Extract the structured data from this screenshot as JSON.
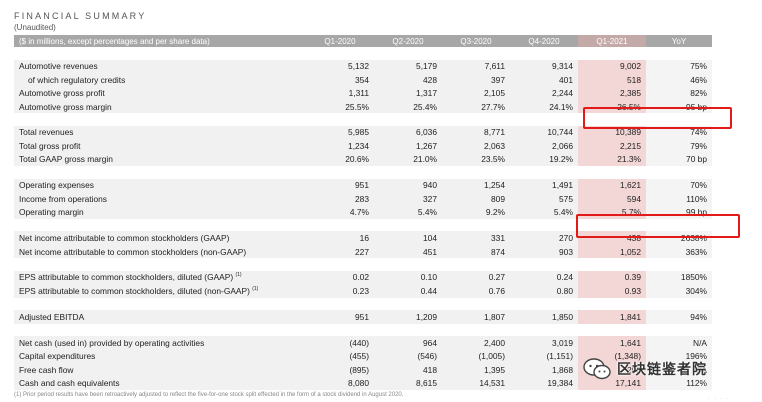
{
  "title": "FINANCIAL SUMMARY",
  "subtitle": "(Unaudited)",
  "header": [
    "($ in millions, except percentages and per share data)",
    "Q1-2020",
    "Q2-2020",
    "Q3-2020",
    "Q4-2020",
    "Q1-2021",
    "YoY"
  ],
  "groups": [
    [
      {
        "label": "Automotive revenues",
        "values": [
          "5,132",
          "5,179",
          "7,611",
          "9,314",
          "9,002",
          "75%"
        ]
      },
      {
        "label": "of which regulatory credits",
        "values": [
          "354",
          "428",
          "397",
          "401",
          "518",
          "46%"
        ],
        "sub": true
      },
      {
        "label": "Automotive gross profit",
        "values": [
          "1,311",
          "1,317",
          "2,105",
          "2,244",
          "2,385",
          "82%"
        ]
      },
      {
        "label": "Automotive gross margin",
        "values": [
          "25.5%",
          "25.4%",
          "27.7%",
          "24.1%",
          "26.5%",
          "95 bp"
        ]
      }
    ],
    [
      {
        "label": "Total revenues",
        "values": [
          "5,985",
          "6,036",
          "8,771",
          "10,744",
          "10,389",
          "74%"
        ]
      },
      {
        "label": "Total gross profit",
        "values": [
          "1,234",
          "1,267",
          "2,063",
          "2,066",
          "2,215",
          "79%"
        ]
      },
      {
        "label": "Total GAAP gross margin",
        "values": [
          "20.6%",
          "21.0%",
          "23.5%",
          "19.2%",
          "21.3%",
          "70 bp"
        ]
      }
    ],
    [
      {
        "label": "Operating expenses",
        "values": [
          "951",
          "940",
          "1,254",
          "1,491",
          "1,621",
          "70%"
        ]
      },
      {
        "label": "Income from operations",
        "values": [
          "283",
          "327",
          "809",
          "575",
          "594",
          "110%"
        ]
      },
      {
        "label": "Operating margin",
        "values": [
          "4.7%",
          "5.4%",
          "9.2%",
          "5.4%",
          "5.7%",
          "99 bp"
        ]
      }
    ],
    [
      {
        "label": "Net income attributable to common stockholders (GAAP)",
        "values": [
          "16",
          "104",
          "331",
          "270",
          "438",
          "2638%"
        ]
      },
      {
        "label": "Net income attributable to common stockholders (non-GAAP)",
        "values": [
          "227",
          "451",
          "874",
          "903",
          "1,052",
          "363%"
        ]
      }
    ],
    [
      {
        "label": "EPS attributable to common stockholders, diluted (GAAP)",
        "sup": "(1)",
        "values": [
          "0.02",
          "0.10",
          "0.27",
          "0.24",
          "0.39",
          "1850%"
        ]
      },
      {
        "label": "EPS attributable to common stockholders, diluted (non-GAAP)",
        "sup": "(1)",
        "values": [
          "0.23",
          "0.44",
          "0.76",
          "0.80",
          "0.93",
          "304%"
        ]
      }
    ],
    [
      {
        "label": "Adjusted EBITDA",
        "values": [
          "951",
          "1,209",
          "1,807",
          "1,850",
          "1,841",
          "94%"
        ]
      }
    ],
    [
      {
        "label": "Net cash (used in) provided by operating activities",
        "values": [
          "(440)",
          "964",
          "2,400",
          "3,019",
          "1,641",
          "N/A"
        ]
      },
      {
        "label": "Capital expenditures",
        "values": [
          "(455)",
          "(546)",
          "(1,005)",
          "(1,151)",
          "(1,348)",
          "196%"
        ]
      },
      {
        "label": "Free cash flow",
        "values": [
          "(895)",
          "418",
          "1,395",
          "1,868",
          "293",
          "N/A"
        ]
      },
      {
        "label": "Cash and cash equivalents",
        "values": [
          "8,080",
          "8,615",
          "14,531",
          "19,384",
          "17,141",
          "112%"
        ]
      }
    ]
  ],
  "footnote": "(1) Prior period results have been retroactively adjusted to reflect the five-for-one stock split effected in the form of a stock dividend in August 2020.",
  "watermark": "区块链鉴者院",
  "colors": {
    "highlight_box": "#e21a1a",
    "q1_2021_fill": "#f3d6d6",
    "header_fill": "#a7a7a7"
  }
}
